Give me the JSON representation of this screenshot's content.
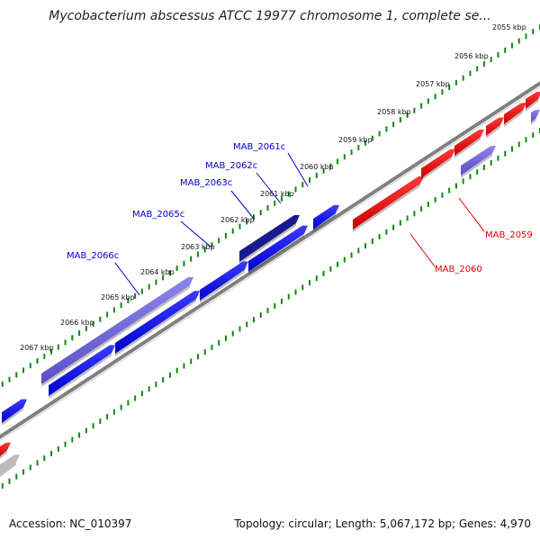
{
  "title": "Mycobacterium abscessus ATCC 19977 chromosome 1, complete se...",
  "footer": {
    "accession": "Accession: NC_010397",
    "summary": "Topology: circular; Length: 5,067,172 bp; Genes: 4,970"
  },
  "ticks": [
    "2055 kbp",
    "2056 kbp",
    "2057 kbp",
    "2058 kbp",
    "2059 kbp",
    "2060 kbp",
    "2061 kbp",
    "2062 kbp",
    "2063 kbp",
    "2064 kbp",
    "2065 kbp",
    "2066 kbp",
    "2067 kbp"
  ],
  "gene_labels": [
    {
      "name": "MAB_2061c",
      "color": "#0000cc"
    },
    {
      "name": "MAB_2062c",
      "color": "#0000cc"
    },
    {
      "name": "MAB_2063c",
      "color": "#0000cc"
    },
    {
      "name": "MAB_2065c",
      "color": "#0000cc"
    },
    {
      "name": "MAB_2066c",
      "color": "#0000cc"
    },
    {
      "name": "MAB_2059",
      "color": "#e00000"
    },
    {
      "name": "MAB_2060",
      "color": "#e00000"
    }
  ],
  "colors": {
    "reverse_gene": "#0000ee",
    "reverse_gene_alt": "#6a5fd6",
    "reverse_gene_dark": "#1a1a8c",
    "forward_gene": "#ee1111",
    "backbone": "#808080",
    "tick_track": "#118811",
    "grey_gene": "#bbbbbb"
  }
}
